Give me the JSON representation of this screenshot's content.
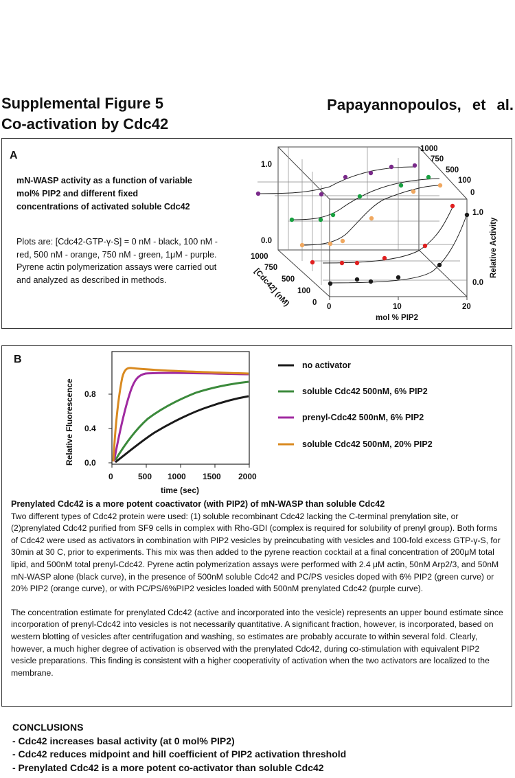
{
  "header": {
    "title_line1": "Supplemental Figure 5",
    "title_line2": "Co-activation by Cdc42",
    "authors": "Papayannopoulos, et al."
  },
  "panel_a": {
    "letter": "A",
    "description_bold": "mN-WASP activity as a function of variable mol% PIP2 and different fixed concentrations of activated soluble Cdc42",
    "description": "Plots are: [Cdc42-GTP-γ-S] = 0 nM - black, 100 nM - red, 500 nM - orange, 750 nM - green, 1μM - purple. Pyrene actin polymerization assays were carried out and analyzed as described in methods.",
    "plot": {
      "top_left_tick_1": "1.0",
      "top_left_tick_0": "0.0",
      "depth_ticks_top": [
        "1000",
        "750",
        "500",
        "100",
        "0"
      ],
      "depth_ticks_left": [
        "1000",
        "750",
        "500",
        "100",
        "0"
      ],
      "depth_axis_label": "[Cdc42]  (nM)",
      "x_ticks": [
        "0",
        "10",
        "20"
      ],
      "x_label": "mol % PIP2",
      "right_ticks": [
        "1.0",
        "0.0"
      ],
      "right_label": "Relative Activity"
    }
  },
  "panel_b": {
    "letter": "B",
    "plot": {
      "y_label": "Relative Fluorescence",
      "x_label": "time  (sec)",
      "x_ticks": [
        "0",
        "500",
        "1000",
        "1500",
        "2000"
      ],
      "y_ticks": [
        "0.0",
        "0.4",
        "0.8"
      ]
    },
    "legend": [
      {
        "label": "no activator",
        "color": "#1a1a1a"
      },
      {
        "label": "soluble Cdc42 500nM, 6% PIP2",
        "color": "#3b8a3b"
      },
      {
        "label": "prenyl-Cdc42 500nM, 6% PIP2",
        "color": "#a02aa0"
      },
      {
        "label": "soluble Cdc42 500nM, 20% PIP2",
        "color": "#d98a20"
      }
    ],
    "caption_heading": "Prenylated Cdc42 is a more potent coactivator (with PIP2) of mN-WASP than soluble Cdc42",
    "caption_p1": "Two different types of Cdc42 protein were used:  (1) soluble recombinant Cdc42 lacking the C-terminal prenylation site, or  (2)prenylated Cdc42 purified from SF9 cells in complex with Rho-GDI (complex is required for solubility of prenyl group). Both forms of Cdc42 were used as activators in combination with PIP2 vesicles by preincubating with vesicles and 100-fold excess GTP-γ-S, for 30min at 30 C, prior to experiments. This mix was  then added to the pyrene reaction cocktail at a final concentration of 200μM total lipid, and 500nM total prenyl-Cdc42.  Pyrene actin polymerization assays were performed with 2.4 μM actin, 50nM Arp2/3, and 50nM mN-WASP alone (black curve), in the presence of 500nM soluble Cdc42 and PC/PS vesicles doped with 6% PIP2 (green curve) or 20% PIP2 (orange curve), or  with PC/PS/6%PIP2 vesicles loaded with 500nM prenylated Cdc42 (purple curve).",
    "caption_p2": "The concentration estimate for prenylated Cdc42 (active and incorporated into the vesicle) represents  an upper bound estimate since incorporation of prenyl-Cdc42 into vesicles is not necessarily quantitative.   A significant fraction, however, is incorporated, based on western blotting of vesicles after centrifugation and washing, so estimates are probably accurate to within several fold.  Clearly, however, a much higher degree of activation is observed with the prenylated Cdc42, during co-stimulation with equivalent PIP2 vesicle preparations.  This finding is consistent with a higher cooperativity of activation when the  two activators are localized to the membrane."
  },
  "conclusions": {
    "heading": "CONCLUSIONS",
    "items": [
      "- Cdc42 increases basal activity (at 0 mol% PIP2)",
      "- Cdc42 reduces midpoint and hill coefficient of PIP2 activation threshold",
      "- Prenylated Cdc42 is a more potent co-activator than soluble Cdc42"
    ]
  },
  "colors": {
    "black": "#1a1a1a",
    "red": "#e02020",
    "orange": "#f0a860",
    "green": "#18a040",
    "purple": "#7a2a8a"
  }
}
